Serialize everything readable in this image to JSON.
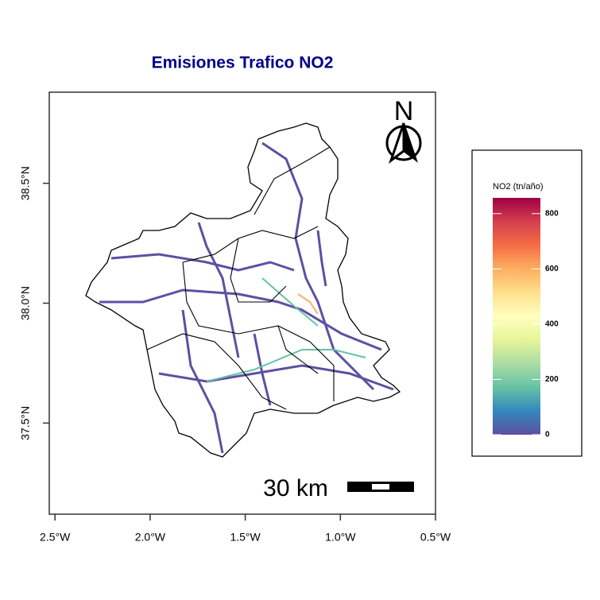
{
  "chart_data": {
    "type": "map",
    "title": "Emisiones Trafico NO2",
    "xlim": [
      -2.53,
      -0.5
    ],
    "ylim": [
      37.12,
      38.88
    ],
    "xticks": [
      {
        "value": -2.5,
        "label": "2.5°W"
      },
      {
        "value": -2.0,
        "label": "2.0°W"
      },
      {
        "value": -1.5,
        "label": "1.5°W"
      },
      {
        "value": -1.0,
        "label": "1.0°W"
      },
      {
        "value": -0.5,
        "label": "0.5°W"
      }
    ],
    "yticks": [
      {
        "value": 37.5,
        "label": "37.5°N"
      },
      {
        "value": 38.0,
        "label": "38.0°N"
      },
      {
        "value": 38.5,
        "label": "38.5°N"
      }
    ],
    "legend": {
      "title": "NO2 (tn/año)",
      "limits": [
        0,
        857
      ],
      "ticks": [
        0,
        200,
        400,
        600,
        800
      ],
      "colors": [
        "#5e4fa2",
        "#3288bd",
        "#66c2a5",
        "#abdda4",
        "#e6f598",
        "#ffffbf",
        "#fee08b",
        "#fdae61",
        "#f46d43",
        "#d53e4f",
        "#9e0142"
      ]
    },
    "north_arrow": "N",
    "scale_bar": "30 km"
  }
}
